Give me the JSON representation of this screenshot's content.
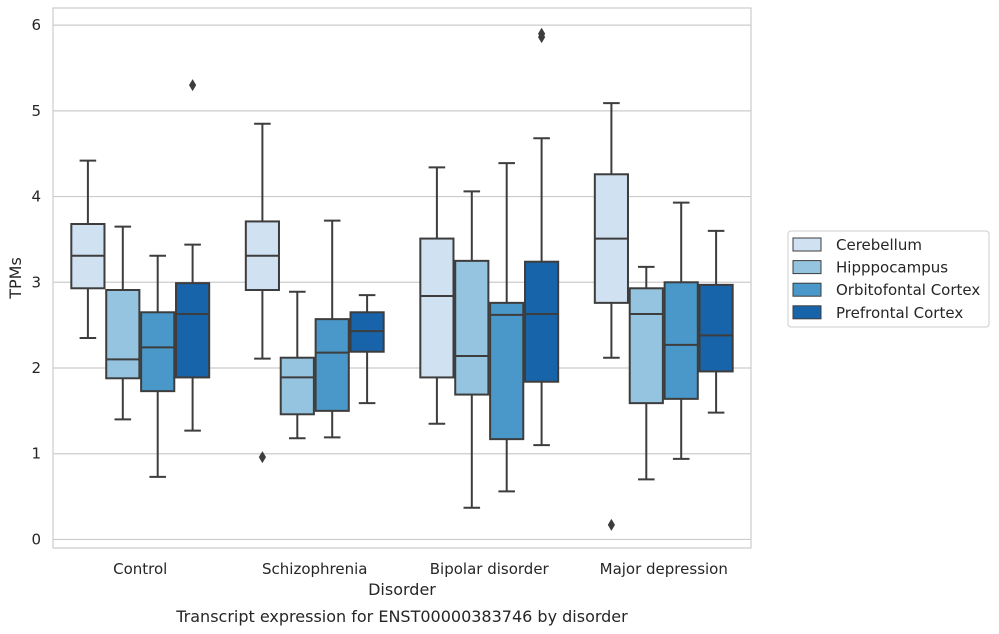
{
  "chart_data": {
    "type": "box",
    "title": "",
    "caption": "Transcript expression for ENST00000383746 by disorder",
    "xlabel": "Disorder",
    "ylabel": "TPMs",
    "ylim": [
      -0.1,
      6.2
    ],
    "yticks": [
      0,
      1,
      2,
      3,
      4,
      5,
      6
    ],
    "grid": "horizontal",
    "legend_position": "right",
    "categories": [
      "Control",
      "Schizophrenia",
      "Bipolar disorder",
      "Major depression"
    ],
    "series": [
      {
        "name": "Cerebellum",
        "color": "#d0e1f2",
        "boxes": [
          {
            "whisker_low": 2.35,
            "q1": 2.93,
            "median": 3.31,
            "q3": 3.68,
            "whisker_high": 4.42,
            "outliers": []
          },
          {
            "whisker_low": 2.11,
            "q1": 2.91,
            "median": 3.31,
            "q3": 3.71,
            "whisker_high": 4.85,
            "outliers": [
              0.96
            ]
          },
          {
            "whisker_low": 1.35,
            "q1": 1.89,
            "median": 2.84,
            "q3": 3.51,
            "whisker_high": 4.34,
            "outliers": []
          },
          {
            "whisker_low": 2.12,
            "q1": 2.76,
            "median": 3.51,
            "q3": 4.26,
            "whisker_high": 5.09,
            "outliers": [
              0.17
            ]
          }
        ]
      },
      {
        "name": "Hipppocampus",
        "color": "#94c4df",
        "boxes": [
          {
            "whisker_low": 1.4,
            "q1": 1.88,
            "median": 2.1,
            "q3": 2.91,
            "whisker_high": 3.65,
            "outliers": []
          },
          {
            "whisker_low": 1.18,
            "q1": 1.46,
            "median": 1.89,
            "q3": 2.12,
            "whisker_high": 2.89,
            "outliers": []
          },
          {
            "whisker_low": 0.37,
            "q1": 1.69,
            "median": 2.14,
            "q3": 3.25,
            "whisker_high": 4.06,
            "outliers": []
          },
          {
            "whisker_low": 0.7,
            "q1": 1.59,
            "median": 2.63,
            "q3": 2.93,
            "whisker_high": 3.18,
            "outliers": []
          }
        ]
      },
      {
        "name": "Orbitofontal Cortex",
        "color": "#4a98c9",
        "boxes": [
          {
            "whisker_low": 0.73,
            "q1": 1.73,
            "median": 2.24,
            "q3": 2.65,
            "whisker_high": 3.31,
            "outliers": []
          },
          {
            "whisker_low": 1.19,
            "q1": 1.5,
            "median": 2.18,
            "q3": 2.57,
            "whisker_high": 3.72,
            "outliers": []
          },
          {
            "whisker_low": 0.56,
            "q1": 1.17,
            "median": 2.62,
            "q3": 2.76,
            "whisker_high": 4.39,
            "outliers": []
          },
          {
            "whisker_low": 0.94,
            "q1": 1.64,
            "median": 2.27,
            "q3": 3.0,
            "whisker_high": 3.93,
            "outliers": []
          }
        ]
      },
      {
        "name": "Prefrontal Cortex",
        "color": "#1764ab",
        "boxes": [
          {
            "whisker_low": 1.27,
            "q1": 1.89,
            "median": 2.63,
            "q3": 2.99,
            "whisker_high": 3.44,
            "outliers": [
              5.3
            ]
          },
          {
            "whisker_low": 1.59,
            "q1": 2.19,
            "median": 2.43,
            "q3": 2.65,
            "whisker_high": 2.85,
            "outliers": []
          },
          {
            "whisker_low": 1.1,
            "q1": 1.84,
            "median": 2.63,
            "q3": 3.24,
            "whisker_high": 4.68,
            "outliers": [
              5.86,
              5.9
            ]
          },
          {
            "whisker_low": 1.48,
            "q1": 1.96,
            "median": 2.38,
            "q3": 2.97,
            "whisker_high": 3.6,
            "outliers": []
          }
        ]
      }
    ]
  }
}
